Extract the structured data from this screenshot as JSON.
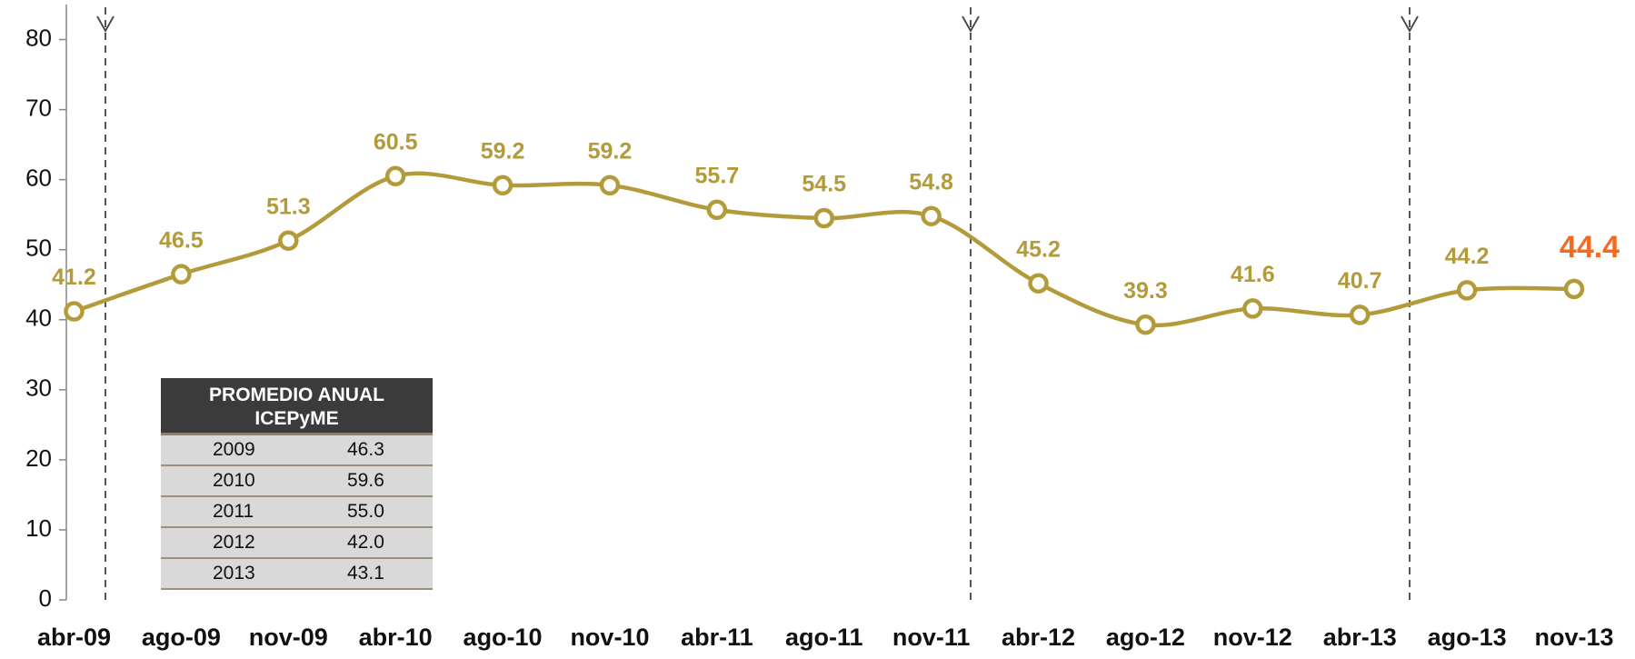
{
  "chart_data": {
    "type": "line",
    "categories": [
      "abr-09",
      "ago-09",
      "nov-09",
      "abr-10",
      "ago-10",
      "nov-10",
      "abr-11",
      "ago-11",
      "nov-11",
      "abr-12",
      "ago-12",
      "nov-12",
      "abr-13",
      "ago-13",
      "nov-13"
    ],
    "series": [
      {
        "name": "ICEPyME",
        "color": "#b39b3c",
        "values": [
          41.2,
          46.5,
          51.3,
          60.5,
          59.2,
          59.2,
          55.7,
          54.5,
          54.8,
          45.2,
          39.3,
          41.6,
          40.7,
          44.2,
          44.4
        ]
      }
    ],
    "last_label_color": "#f26b21",
    "ylim": [
      0,
      85
    ],
    "yticks": [
      0,
      10,
      20,
      30,
      40,
      50,
      60,
      70,
      80
    ]
  },
  "table": {
    "header": "PROMEDIO ANUAL ICEPyME",
    "rows": [
      [
        "2009",
        "46.3"
      ],
      [
        "2010",
        "59.6"
      ],
      [
        "2011",
        "55.0"
      ],
      [
        "2012",
        "42.0"
      ],
      [
        "2013",
        "43.1"
      ]
    ]
  }
}
